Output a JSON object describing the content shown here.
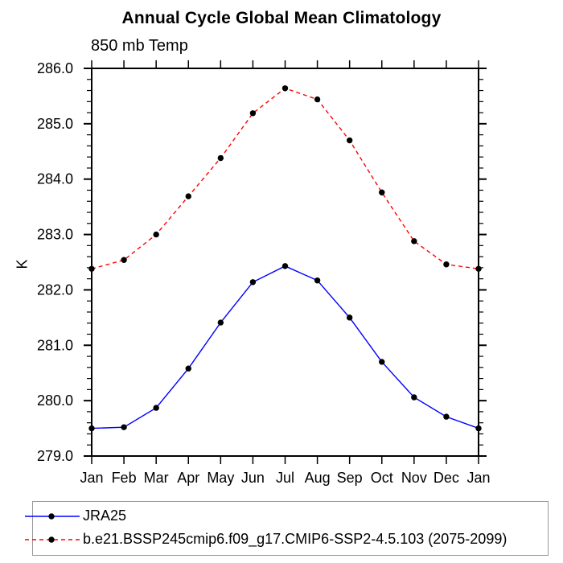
{
  "chart_data": {
    "type": "line",
    "title": "Annual Cycle Global Mean Climatology",
    "subtitle": "850 mb Temp",
    "ylabel": "K",
    "xlabel": "",
    "x": [
      "Jan",
      "Feb",
      "Mar",
      "Apr",
      "May",
      "Jun",
      "Jul",
      "Aug",
      "Sep",
      "Oct",
      "Nov",
      "Dec",
      "Jan"
    ],
    "ylim": [
      279.0,
      286.0
    ],
    "ytick_step": 1.0,
    "y_minor_step": 0.2,
    "ytick_format_decimals": 1,
    "grid": false,
    "legend_position": "bottom-left",
    "marker": "filled-circle",
    "marker_color": "#000000",
    "axis_color": "#000000",
    "legend_border_color": "#999999",
    "series": [
      {
        "name": "JRA25",
        "color": "#0000ff",
        "style": "solid",
        "values": [
          279.5,
          279.52,
          279.87,
          280.58,
          281.41,
          282.14,
          282.43,
          282.17,
          281.5,
          280.7,
          280.06,
          279.71,
          279.5
        ]
      },
      {
        "name": "b.e21.BSSP245cmip6.f09_g17.CMIP6-SSP2-4.5.103 (2075-2099)",
        "color": "#ff0000",
        "style": "dashed",
        "values": [
          282.38,
          282.54,
          283.0,
          283.69,
          284.38,
          285.19,
          285.64,
          285.44,
          284.7,
          283.76,
          282.88,
          282.46,
          282.38
        ]
      }
    ]
  }
}
